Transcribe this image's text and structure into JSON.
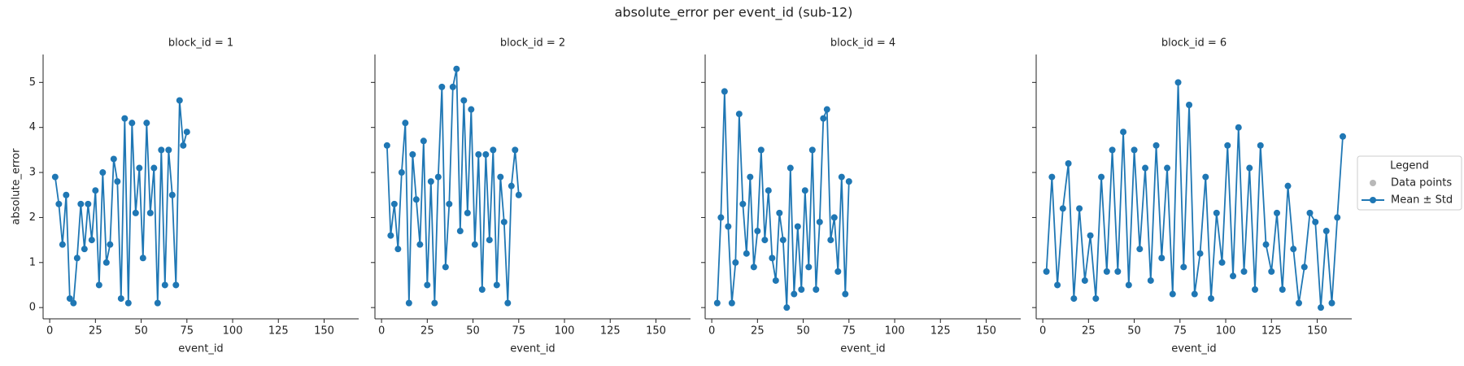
{
  "title": "absolute_error per event_id (sub-12)",
  "legend": {
    "title": "Legend",
    "labels": [
      "Data points",
      "Mean ± Std"
    ],
    "colors": [
      "#b8b8b8",
      "#1f77b4"
    ]
  },
  "chart_data": [
    {
      "type": "line",
      "title": "block_id = 1",
      "xlabel": "event_id",
      "ylabel": "absolute_error",
      "x": [
        3,
        5,
        7,
        9,
        11,
        13,
        15,
        17,
        19,
        21,
        23,
        25,
        27,
        29,
        31,
        33,
        35,
        37,
        39,
        41,
        43,
        45,
        47,
        49,
        51,
        53,
        55,
        57,
        59,
        61,
        63,
        65,
        67,
        69,
        71,
        73,
        75
      ],
      "series": [
        {
          "name": "Mean ± Std",
          "color": "#1f77b4",
          "values": [
            2.9,
            2.3,
            1.4,
            2.5,
            0.2,
            0.1,
            1.1,
            2.3,
            1.3,
            2.3,
            1.5,
            2.6,
            0.5,
            3.0,
            1.0,
            1.4,
            3.3,
            2.8,
            0.2,
            4.2,
            0.1,
            4.1,
            2.1,
            3.1,
            1.1,
            4.1,
            2.1,
            3.1,
            0.1,
            3.5,
            0.5,
            3.5,
            2.5,
            0.5,
            4.6,
            3.6,
            3.9
          ]
        }
      ],
      "xlim": [
        -3.6,
        168.9
      ],
      "ylim": [
        -0.25,
        5.62
      ],
      "xticks": [
        0,
        25,
        50,
        75,
        100,
        125,
        150
      ],
      "yticks": [
        0,
        1,
        2,
        3,
        4,
        5
      ]
    },
    {
      "type": "line",
      "title": "block_id = 2",
      "xlabel": "event_id",
      "x": [
        3,
        5,
        7,
        9,
        11,
        13,
        15,
        17,
        19,
        21,
        23,
        25,
        27,
        29,
        31,
        33,
        35,
        37,
        39,
        41,
        43,
        45,
        47,
        49,
        51,
        53,
        55,
        57,
        59,
        61,
        63,
        65,
        67,
        69,
        71,
        73,
        75
      ],
      "series": [
        {
          "name": "Mean ± Std",
          "color": "#1f77b4",
          "values": [
            3.6,
            1.6,
            2.3,
            1.3,
            3.0,
            4.1,
            0.1,
            3.4,
            2.4,
            1.4,
            3.7,
            0.5,
            2.8,
            0.1,
            2.9,
            4.9,
            0.9,
            2.3,
            4.9,
            5.3,
            1.7,
            4.6,
            2.1,
            4.4,
            1.4,
            3.4,
            0.4,
            3.4,
            1.5,
            3.5,
            0.5,
            2.9,
            1.9,
            0.1,
            2.7,
            3.5,
            2.5
          ]
        }
      ],
      "xlim": [
        -3.6,
        168.9
      ],
      "ylim": [
        -0.25,
        5.62
      ],
      "xticks": [
        0,
        25,
        50,
        75,
        100,
        125,
        150
      ],
      "yticks": [
        0,
        1,
        2,
        3,
        4,
        5
      ]
    },
    {
      "type": "line",
      "title": "block_id = 4",
      "xlabel": "event_id",
      "x": [
        3,
        5,
        7,
        9,
        11,
        13,
        15,
        17,
        19,
        21,
        23,
        25,
        27,
        29,
        31,
        33,
        35,
        37,
        39,
        41,
        43,
        45,
        47,
        49,
        51,
        53,
        55,
        57,
        59,
        61,
        63,
        65,
        67,
        69,
        71,
        73,
        75
      ],
      "series": [
        {
          "name": "Mean ± Std",
          "color": "#1f77b4",
          "values": [
            0.1,
            2.0,
            4.8,
            1.8,
            0.1,
            1.0,
            4.3,
            2.3,
            1.2,
            2.9,
            0.9,
            1.7,
            3.5,
            1.5,
            2.6,
            1.1,
            0.6,
            2.1,
            1.5,
            0.0,
            3.1,
            0.3,
            1.8,
            0.4,
            2.6,
            0.9,
            3.5,
            0.4,
            1.9,
            4.2,
            4.4,
            1.5,
            2.0,
            0.8,
            2.9,
            0.3,
            2.8
          ]
        }
      ],
      "xlim": [
        -3.6,
        168.9
      ],
      "ylim": [
        -0.25,
        5.62
      ],
      "xticks": [
        0,
        25,
        50,
        75,
        100,
        125,
        150
      ],
      "yticks": [
        0,
        1,
        2,
        3,
        4,
        5
      ]
    },
    {
      "type": "line",
      "title": "block_id = 6",
      "xlabel": "event_id",
      "x": [
        2,
        5,
        8,
        11,
        14,
        17,
        20,
        23,
        26,
        29,
        32,
        35,
        38,
        41,
        44,
        47,
        50,
        53,
        56,
        59,
        62,
        65,
        68,
        71,
        74,
        77,
        80,
        83,
        86,
        89,
        92,
        95,
        98,
        101,
        104,
        107,
        110,
        113,
        116,
        119,
        122,
        125,
        128,
        131,
        134,
        137,
        140,
        143,
        146,
        149,
        152,
        155,
        158,
        161,
        164
      ],
      "series": [
        {
          "name": "Mean ± Std",
          "color": "#1f77b4",
          "values": [
            0.8,
            2.9,
            0.5,
            2.2,
            3.2,
            0.2,
            2.2,
            0.6,
            1.6,
            0.2,
            2.9,
            0.8,
            3.5,
            0.8,
            3.9,
            0.5,
            3.5,
            1.3,
            3.1,
            0.6,
            3.6,
            1.1,
            3.1,
            0.3,
            5.0,
            0.9,
            4.5,
            0.3,
            1.2,
            2.9,
            0.2,
            2.1,
            1.0,
            3.6,
            0.7,
            4.0,
            0.8,
            3.1,
            0.4,
            3.6,
            1.4,
            0.8,
            2.1,
            0.4,
            2.7,
            1.3,
            0.1,
            0.9,
            2.1,
            1.9,
            0.0,
            1.7,
            0.1,
            2.0,
            3.8
          ]
        }
      ],
      "xlim": [
        -3.6,
        168.9
      ],
      "ylim": [
        -0.25,
        5.62
      ],
      "xticks": [
        0,
        25,
        50,
        75,
        100,
        125,
        150
      ],
      "yticks": [
        0,
        1,
        2,
        3,
        4,
        5
      ]
    }
  ]
}
